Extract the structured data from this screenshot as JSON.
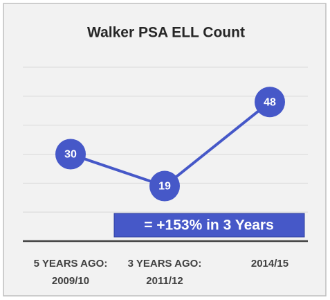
{
  "chart_data": {
    "type": "line",
    "title": "Walker PSA ELL Count",
    "categories": [
      "5 YEARS AGO: 2009/10",
      "3 YEARS AGO: 2011/12",
      "2014/15"
    ],
    "series": [
      {
        "name": "ELL Count",
        "color": "#4658c8",
        "values": [
          30,
          19,
          48
        ]
      }
    ],
    "ylim": [
      0,
      60
    ],
    "yticks": [
      0,
      10,
      20,
      30,
      40,
      50,
      60
    ],
    "grid": true,
    "annotation": "= +153% in 3 Years"
  }
}
